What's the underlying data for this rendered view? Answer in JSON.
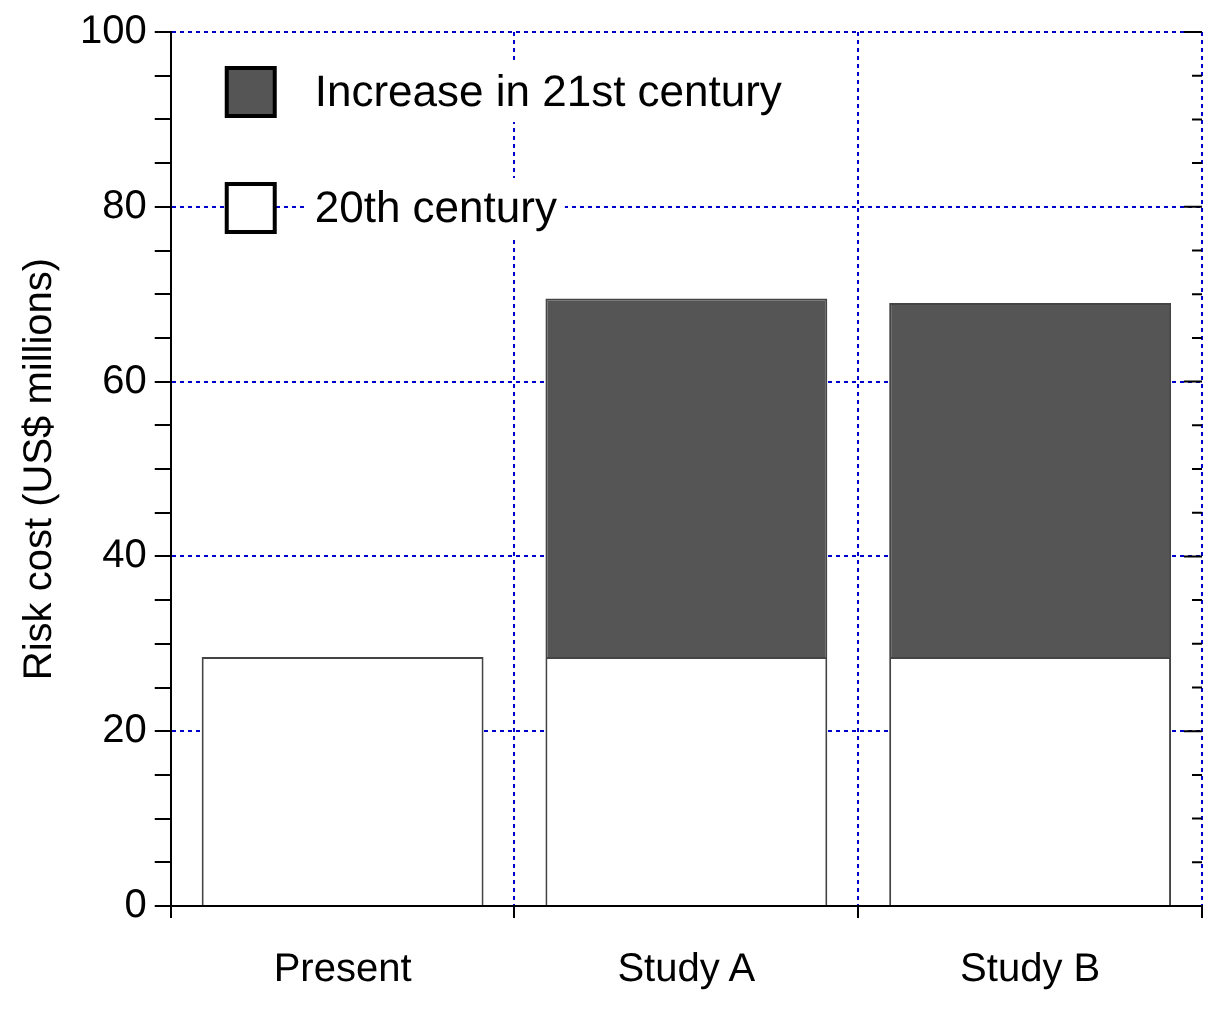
{
  "chart_data": {
    "type": "bar",
    "stacked": true,
    "ylabel": "Risk cost (US$ millions)",
    "categories": [
      "Present",
      "Study A",
      "Study B"
    ],
    "series": [
      {
        "name": "20th century",
        "color": "#ffffff",
        "values": [
          28.5,
          28.5,
          28.5
        ]
      },
      {
        "name": "Increase in 21st century",
        "color": "#555556",
        "values": [
          null,
          41,
          40.5
        ]
      }
    ],
    "ylim": [
      0,
      100
    ],
    "yticks": [
      0,
      {
        "value": 5,
        "label": null
      },
      {
        "value": 10,
        "label": null
      },
      {
        "value": 15,
        "label": null
      },
      20,
      {
        "value": 25,
        "label": null
      },
      {
        "value": 30,
        "label": null
      },
      {
        "value": 35,
        "label": null
      },
      40,
      {
        "value": 45,
        "label": null
      },
      {
        "value": 50,
        "label": null
      },
      {
        "value": 55,
        "label": null
      },
      60,
      {
        "value": 65,
        "label": null
      },
      {
        "value": 70,
        "label": null
      },
      {
        "value": 75,
        "label": null
      },
      80,
      {
        "value": 85,
        "label": null
      },
      {
        "value": 90,
        "label": null
      },
      {
        "value": 95,
        "label": null
      },
      100
    ],
    "grid": true,
    "legend": "top left"
  }
}
